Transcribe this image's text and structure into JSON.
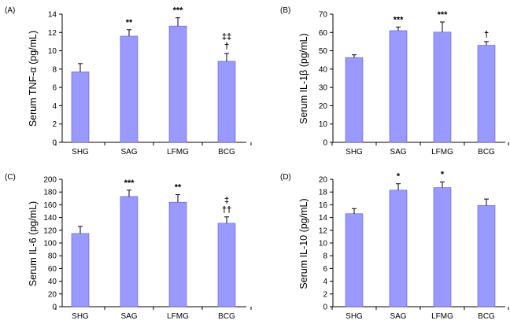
{
  "chart_data": [
    {
      "type": "bar",
      "panel_label": "(A)",
      "title": "",
      "ylabel": "Serum TNF-α (pg/mL)",
      "xlabel": "",
      "ylim": [
        0,
        14
      ],
      "yticks": [
        "0",
        "2",
        "4",
        "6",
        "8",
        "10",
        "12",
        "14"
      ],
      "categories": [
        "SHG",
        "SAG",
        "LFMG",
        "BCG"
      ],
      "values": [
        7.7,
        11.6,
        12.7,
        8.85
      ],
      "errors": [
        0.9,
        0.7,
        0.9,
        0.85
      ],
      "annotations": [
        [],
        [
          "**"
        ],
        [
          "***"
        ],
        [
          "‡‡",
          "†"
        ]
      ],
      "color": "#9999ff"
    },
    {
      "type": "bar",
      "panel_label": "(B)",
      "title": "",
      "ylabel": "Serum IL-1β (pg/mL)",
      "xlabel": "",
      "ylim": [
        0,
        70
      ],
      "yticks": [
        "0",
        "10",
        "20",
        "30",
        "40",
        "50",
        "60",
        "70"
      ],
      "categories": [
        "SHG",
        "SAG",
        "LFMG",
        "BCG"
      ],
      "values": [
        46.3,
        61,
        60.2,
        53
      ],
      "errors": [
        1.5,
        2.0,
        5.5,
        2.0
      ],
      "annotations": [
        [],
        [
          "***"
        ],
        [
          "***"
        ],
        [
          "†"
        ]
      ],
      "color": "#9999ff"
    },
    {
      "type": "bar",
      "panel_label": "(C)",
      "title": "",
      "ylabel": "Serum IL-6 (pg/mL)",
      "xlabel": "",
      "ylim": [
        0,
        200
      ],
      "yticks": [
        "0",
        "20",
        "40",
        "60",
        "80",
        "100",
        "120",
        "140",
        "160",
        "180",
        "200"
      ],
      "categories": [
        "SHG",
        "SAG",
        "LFMG",
        "BCG"
      ],
      "values": [
        115,
        173,
        164,
        131
      ],
      "errors": [
        11,
        10,
        12,
        10
      ],
      "annotations": [
        [],
        [
          "***"
        ],
        [
          "**"
        ],
        [
          "‡",
          "††"
        ]
      ],
      "color": "#9999ff"
    },
    {
      "type": "bar",
      "panel_label": "(D)",
      "title": "",
      "ylabel": "Serum IL-10 (pg/mL)",
      "xlabel": "",
      "ylim": [
        0,
        20
      ],
      "yticks": [
        "0",
        "2",
        "4",
        "6",
        "8",
        "10",
        "12",
        "14",
        "16",
        "18",
        "20"
      ],
      "categories": [
        "SHG",
        "SAG",
        "LFMG",
        "BCG"
      ],
      "values": [
        14.6,
        18.3,
        18.7,
        15.9
      ],
      "errors": [
        0.8,
        1.0,
        0.9,
        1.0
      ],
      "annotations": [
        [],
        [
          "*"
        ],
        [
          "*"
        ],
        []
      ],
      "color": "#9999ff"
    }
  ]
}
